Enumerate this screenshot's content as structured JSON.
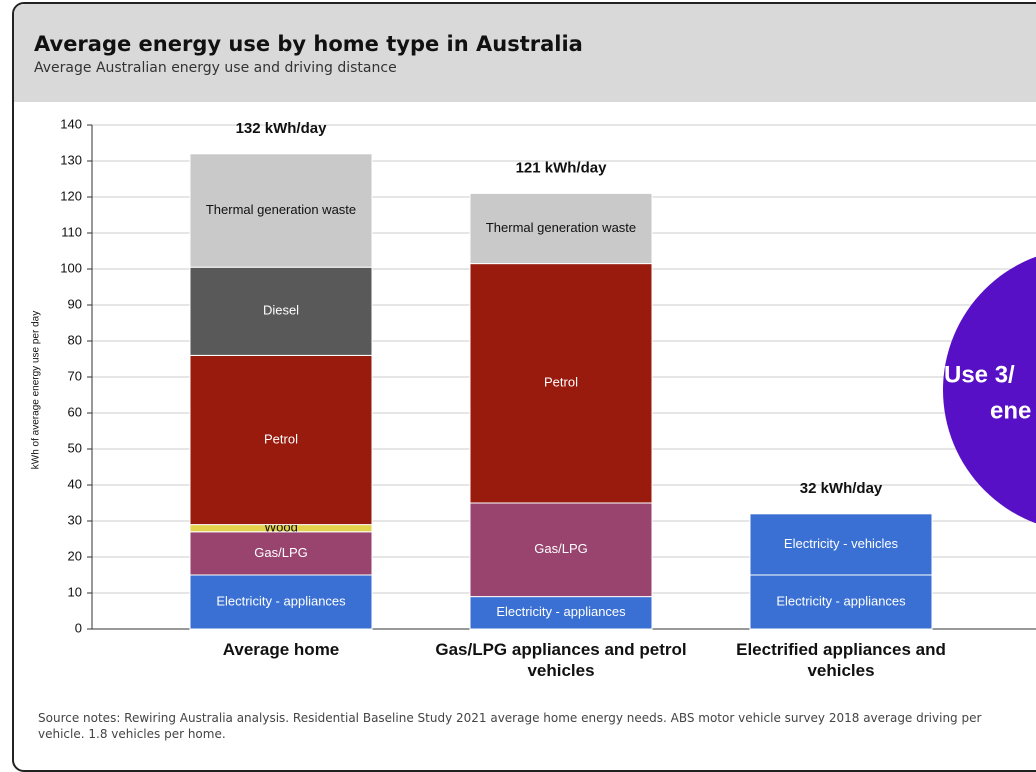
{
  "chart_data": {
    "type": "stacked_bar",
    "title": "Average energy use by home type in Australia",
    "subtitle": "Average Australian energy use and driving distance",
    "y_label": "kWh of average energy use per day",
    "categories": [
      "Average home",
      "Gas/LPG appliances and petrol vehicles",
      "Electrified appliances and vehicles"
    ],
    "total_labels": [
      "132 kWh/day",
      "121 kWh/day",
      "32 kWh/day"
    ],
    "series": [
      {
        "name": "Electricity - appliances",
        "color": "#3a70d3",
        "values": [
          15,
          9,
          15
        ]
      },
      {
        "name": "Gas/LPG",
        "color": "#99446f",
        "values": [
          12,
          26,
          null
        ]
      },
      {
        "name": "Wood",
        "color": "#e3d24b",
        "values": [
          2,
          null,
          null
        ]
      },
      {
        "name": "Petrol",
        "color": "#991b0d",
        "values": [
          47,
          66.5,
          null
        ]
      },
      {
        "name": "Diesel",
        "color": "#595959",
        "values": [
          24.5,
          null,
          null
        ]
      },
      {
        "name": "Thermal generation waste",
        "color": "#c9c9c9",
        "values": [
          31.5,
          19.5,
          null
        ]
      },
      {
        "name": "Electricity - vehicles",
        "color": "#3a70d3",
        "values": [
          null,
          null,
          17
        ]
      }
    ],
    "ylim": [
      0,
      140
    ],
    "yticks": [
      0,
      10,
      20,
      30,
      40,
      50,
      60,
      70,
      80,
      90,
      100,
      110,
      120,
      130,
      140
    ],
    "grid": true,
    "source": "Source notes: Rewiring Australia analysis. Residential Baseline Study 2021 average home energy needs. ABS motor vehicle survey 2018 average driving per vehicle. 1.8 vehicles per home.",
    "callout": [
      "Use 3/",
      "ene"
    ]
  }
}
